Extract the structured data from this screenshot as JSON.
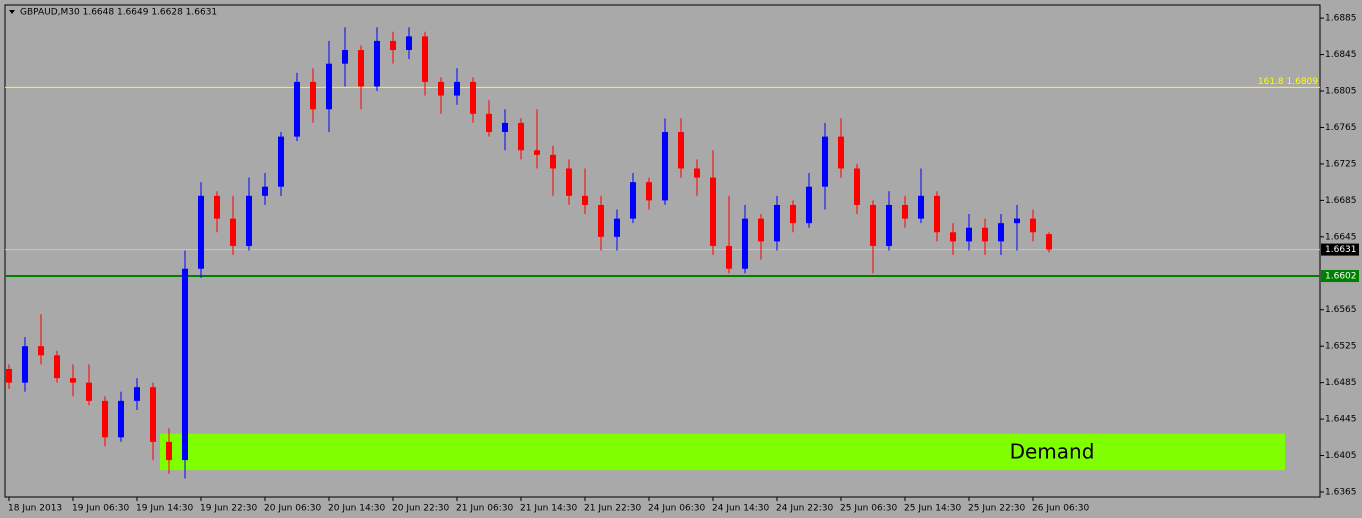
{
  "chart_data": {
    "type": "candlestick",
    "title": "GBPAUD,M30  1.6648 1.6649 1.6628 1.6631",
    "up_color": "#0000ff",
    "down_color": "#ff0000",
    "ylim": [
      1.63595,
      1.68994
    ],
    "yticks": [
      1.6885,
      1.6845,
      1.6805,
      1.6765,
      1.6725,
      1.6685,
      1.6645,
      1.6565,
      1.6525,
      1.6485,
      1.6445,
      1.6405,
      1.6365
    ],
    "categories": [
      "18 Jun 2013",
      null,
      null,
      null,
      "19 Jun 06:30",
      null,
      null,
      null,
      "19 Jun 14:30",
      null,
      null,
      null,
      "19 Jun 22:30",
      null,
      null,
      null,
      "20 Jun 06:30",
      null,
      null,
      null,
      "20 Jun 14:30",
      null,
      null,
      null,
      "20 Jun 22:30",
      null,
      null,
      null,
      "21 Jun 06:30",
      null,
      null,
      null,
      "21 Jun 14:30",
      null,
      null,
      null,
      "21 Jun 22:30",
      null,
      null,
      null,
      "24 Jun 06:30",
      null,
      null,
      null,
      "24 Jun 14:30",
      null,
      null,
      null,
      "24 Jun 22:30",
      null,
      null,
      null,
      "25 Jun 06:30",
      null,
      null,
      null,
      "25 Jun 14:30",
      null,
      null,
      null,
      "25 Jun 22:30",
      null,
      null,
      null,
      "26 Jun 06:30",
      null
    ],
    "ohlc": [
      [
        1.65,
        1.6505,
        1.6478,
        1.6485
      ],
      [
        1.6485,
        1.6535,
        1.6475,
        1.6525
      ],
      [
        1.6525,
        1.656,
        1.6505,
        1.6515
      ],
      [
        1.6515,
        1.652,
        1.6485,
        1.649
      ],
      [
        1.649,
        1.6505,
        1.647,
        1.6485
      ],
      [
        1.6485,
        1.6505,
        1.646,
        1.6465
      ],
      [
        1.6465,
        1.647,
        1.6415,
        1.6425
      ],
      [
        1.6425,
        1.6475,
        1.642,
        1.6465
      ],
      [
        1.6465,
        1.649,
        1.6455,
        1.648
      ],
      [
        1.648,
        1.6485,
        1.64,
        1.642
      ],
      [
        1.642,
        1.6435,
        1.6385,
        1.64
      ],
      [
        1.64,
        1.663,
        1.638,
        1.661
      ],
      [
        1.661,
        1.6705,
        1.66,
        1.669
      ],
      [
        1.669,
        1.6695,
        1.665,
        1.6665
      ],
      [
        1.6665,
        1.669,
        1.6625,
        1.6635
      ],
      [
        1.6635,
        1.671,
        1.663,
        1.669
      ],
      [
        1.669,
        1.6715,
        1.668,
        1.67
      ],
      [
        1.67,
        1.676,
        1.669,
        1.6755
      ],
      [
        1.6755,
        1.6825,
        1.675,
        1.6815
      ],
      [
        1.6815,
        1.683,
        1.677,
        1.6785
      ],
      [
        1.6785,
        1.686,
        1.676,
        1.6835
      ],
      [
        1.6835,
        1.6875,
        1.681,
        1.685
      ],
      [
        1.685,
        1.6855,
        1.6785,
        1.681
      ],
      [
        1.681,
        1.6875,
        1.6805,
        1.686
      ],
      [
        1.686,
        1.687,
        1.6835,
        1.685
      ],
      [
        1.685,
        1.6875,
        1.684,
        1.6865
      ],
      [
        1.6865,
        1.687,
        1.68,
        1.6815
      ],
      [
        1.6815,
        1.682,
        1.678,
        1.68
      ],
      [
        1.68,
        1.683,
        1.679,
        1.6815
      ],
      [
        1.6815,
        1.682,
        1.677,
        1.678
      ],
      [
        1.678,
        1.6795,
        1.6755,
        1.676
      ],
      [
        1.676,
        1.6785,
        1.674,
        1.677
      ],
      [
        1.677,
        1.6775,
        1.673,
        1.674
      ],
      [
        1.674,
        1.6785,
        1.672,
        1.6735
      ],
      [
        1.6735,
        1.6745,
        1.669,
        1.672
      ],
      [
        1.672,
        1.673,
        1.668,
        1.669
      ],
      [
        1.669,
        1.672,
        1.667,
        1.668
      ],
      [
        1.668,
        1.669,
        1.663,
        1.6645
      ],
      [
        1.6645,
        1.6675,
        1.663,
        1.6665
      ],
      [
        1.6665,
        1.6715,
        1.666,
        1.6705
      ],
      [
        1.6705,
        1.671,
        1.6675,
        1.6685
      ],
      [
        1.6685,
        1.6775,
        1.668,
        1.676
      ],
      [
        1.676,
        1.6775,
        1.671,
        1.672
      ],
      [
        1.672,
        1.673,
        1.669,
        1.671
      ],
      [
        1.671,
        1.674,
        1.6625,
        1.6635
      ],
      [
        1.6635,
        1.669,
        1.6605,
        1.661
      ],
      [
        1.661,
        1.668,
        1.6605,
        1.6665
      ],
      [
        1.6665,
        1.667,
        1.662,
        1.664
      ],
      [
        1.664,
        1.669,
        1.663,
        1.668
      ],
      [
        1.668,
        1.6685,
        1.665,
        1.666
      ],
      [
        1.666,
        1.6715,
        1.6655,
        1.67
      ],
      [
        1.67,
        1.677,
        1.6675,
        1.6755
      ],
      [
        1.6755,
        1.6775,
        1.671,
        1.672
      ],
      [
        1.672,
        1.6725,
        1.667,
        1.668
      ],
      [
        1.668,
        1.6685,
        1.6605,
        1.6635
      ],
      [
        1.6635,
        1.6695,
        1.663,
        1.668
      ],
      [
        1.668,
        1.669,
        1.6655,
        1.6665
      ],
      [
        1.6665,
        1.672,
        1.666,
        1.669
      ],
      [
        1.669,
        1.6695,
        1.664,
        1.665
      ],
      [
        1.665,
        1.666,
        1.6625,
        1.664
      ],
      [
        1.664,
        1.667,
        1.663,
        1.6655
      ],
      [
        1.6655,
        1.6665,
        1.6625,
        1.664
      ],
      [
        1.664,
        1.667,
        1.6625,
        1.666
      ],
      [
        1.666,
        1.668,
        1.663,
        1.6665
      ],
      [
        1.6665,
        1.6675,
        1.664,
        1.665
      ],
      [
        1.6648,
        1.665,
        1.6628,
        1.6631
      ]
    ],
    "fib_level": {
      "label": "161.8 1.6809",
      "value": 1.6809,
      "color": "#ffff00"
    },
    "support_level": {
      "value": 1.6602,
      "color": "#008000"
    },
    "bid_level": {
      "value": 1.6631,
      "color": "#c8c8c8"
    },
    "zone": {
      "label": "Demand",
      "top": 1.6429,
      "bottom": 1.6389,
      "color": "#7fff00"
    }
  }
}
